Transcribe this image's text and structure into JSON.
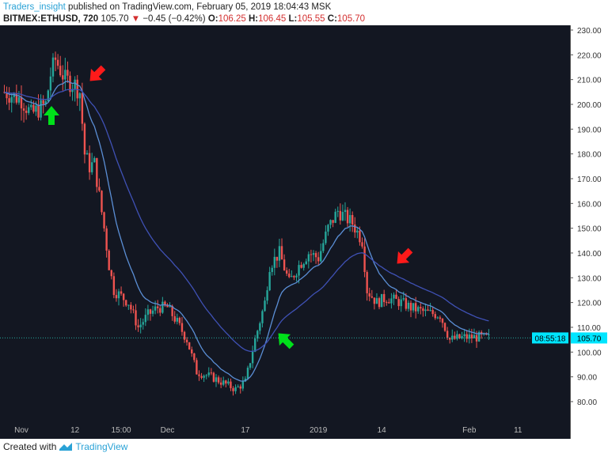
{
  "header": {
    "user": "Traders_insight",
    "published": "published on TradingView.com, February 05, 2019 18:04:43 MSK",
    "symbol": "BITMEX:ETHUSD, 720",
    "last": "105.70",
    "change": "−0.45 (−0.42%)",
    "o_label": "O:",
    "o": "106.25",
    "h_label": "H:",
    "h": "106.45",
    "l_label": "L:",
    "l": "105.55",
    "c_label": "C:",
    "c": "105.70"
  },
  "footer": {
    "created_with": "Created with",
    "brand": "TradingView"
  },
  "colors": {
    "background": "#131722",
    "up": "#26a69a",
    "down": "#ef5350",
    "ma_fast": "#5b8fd6",
    "ma_slow": "#3f51b5",
    "arrow_up": "#00e01a",
    "arrow_down": "#ff1a1a",
    "price_tag": "#00e5ff"
  },
  "chart_data": {
    "type": "candlestick",
    "symbol": "BITMEX:ETHUSD",
    "interval": "720",
    "ylim": [
      78,
      232
    ],
    "y_ticks": [
      "230.00",
      "220.00",
      "210.00",
      "200.00",
      "190.00",
      "180.00",
      "170.00",
      "160.00",
      "150.00",
      "140.00",
      "130.00",
      "120.00",
      "110.00",
      "100.00",
      "90.00",
      "80.00"
    ],
    "y_tick_values": [
      230,
      220,
      210,
      200,
      190,
      180,
      170,
      160,
      150,
      140,
      130,
      120,
      110,
      100,
      90,
      80
    ],
    "x_ticks": [
      {
        "label": "Nov",
        "day": 0
      },
      {
        "label": "12",
        "day": 11
      },
      {
        "label": "15:00",
        "day": 20.5
      },
      {
        "label": "Dec",
        "day": 30
      },
      {
        "label": "17",
        "day": 46
      },
      {
        "label": "2019",
        "day": 61
      },
      {
        "label": "14",
        "day": 74
      },
      {
        "label": "Feb",
        "day": 92
      },
      {
        "label": "11",
        "day": 102
      }
    ],
    "close_path": [
      [
        -3.5,
        205
      ],
      [
        0,
        202
      ],
      [
        2,
        196
      ],
      [
        5,
        200
      ],
      [
        6,
        212
      ],
      [
        7,
        218
      ],
      [
        9,
        210
      ],
      [
        11,
        208
      ],
      [
        12,
        205
      ],
      [
        13,
        180
      ],
      [
        14,
        175
      ],
      [
        15,
        176
      ],
      [
        17,
        150
      ],
      [
        18,
        135
      ],
      [
        19,
        125
      ],
      [
        22,
        120
      ],
      [
        24,
        110
      ],
      [
        26,
        115
      ],
      [
        28,
        118
      ],
      [
        30,
        118
      ],
      [
        32,
        112
      ],
      [
        34,
        105
      ],
      [
        36,
        92
      ],
      [
        39,
        90
      ],
      [
        41,
        88
      ],
      [
        44,
        85
      ],
      [
        46,
        88
      ],
      [
        48,
        105
      ],
      [
        50,
        120
      ],
      [
        51,
        135
      ],
      [
        53,
        140
      ],
      [
        55,
        128
      ],
      [
        57,
        135
      ],
      [
        59,
        140
      ],
      [
        61,
        138
      ],
      [
        63,
        150
      ],
      [
        65,
        157
      ],
      [
        68,
        152
      ],
      [
        70,
        145
      ],
      [
        71,
        125
      ],
      [
        73,
        120
      ],
      [
        75,
        122
      ],
      [
        78,
        120
      ],
      [
        80,
        118
      ],
      [
        83,
        116
      ],
      [
        86,
        115
      ],
      [
        88,
        105
      ],
      [
        91,
        106
      ],
      [
        94,
        106
      ],
      [
        96,
        105.7
      ]
    ],
    "moving_averages": [
      "fast",
      "slow"
    ],
    "last_price": "105.70",
    "countdown": "08:55:18",
    "annotations": [
      {
        "type": "arrow-up",
        "color": "green",
        "day": 6
      },
      {
        "type": "arrow-down-left",
        "color": "red",
        "day": 13
      },
      {
        "type": "arrow-up-left",
        "color": "green",
        "day": 50
      },
      {
        "type": "arrow-down-left",
        "color": "red",
        "day": 75
      }
    ]
  }
}
